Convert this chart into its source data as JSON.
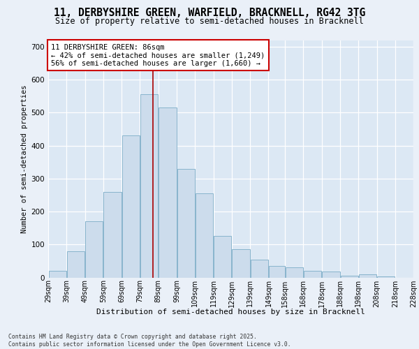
{
  "title_line1": "11, DERBYSHIRE GREEN, WARFIELD, BRACKNELL, RG42 3TG",
  "title_line2": "Size of property relative to semi-detached houses in Bracknell",
  "xlabel": "Distribution of semi-detached houses by size in Bracknell",
  "ylabel": "Number of semi-detached properties",
  "bar_heights": [
    20,
    80,
    170,
    260,
    430,
    555,
    515,
    330,
    255,
    125,
    85,
    55,
    35,
    30,
    20,
    18,
    5,
    10,
    3,
    0,
    0
  ],
  "bar_color": "#ccdcec",
  "bar_edge_color": "#88b4cc",
  "vline_x": 86,
  "vline_color": "#aa0000",
  "annotation_title": "11 DERBYSHIRE GREEN: 86sqm",
  "annotation_line1": "← 42% of semi-detached houses are smaller (1,249)",
  "annotation_line2": "56% of semi-detached houses are larger (1,660) →",
  "footnote_line1": "Contains HM Land Registry data © Crown copyright and database right 2025.",
  "footnote_line2": "Contains public sector information licensed under the Open Government Licence v3.0.",
  "ylim": [
    0,
    720
  ],
  "yticks": [
    0,
    100,
    200,
    300,
    400,
    500,
    600,
    700
  ],
  "bg_color": "#dce8f4",
  "fig_bg_color": "#eaf0f8",
  "grid_color": "#ffffff",
  "bin_edges": [
    29,
    39,
    49,
    59,
    69,
    79,
    89,
    99,
    109,
    119,
    129,
    139,
    149,
    158,
    168,
    178,
    188,
    198,
    208,
    218,
    228
  ],
  "title_fontsize": 10.5,
  "subtitle_fontsize": 8.5,
  "ylabel_fontsize": 7.5,
  "xlabel_fontsize": 8,
  "tick_fontsize": 7,
  "annot_fontsize": 7.5,
  "footnote_fontsize": 5.8
}
